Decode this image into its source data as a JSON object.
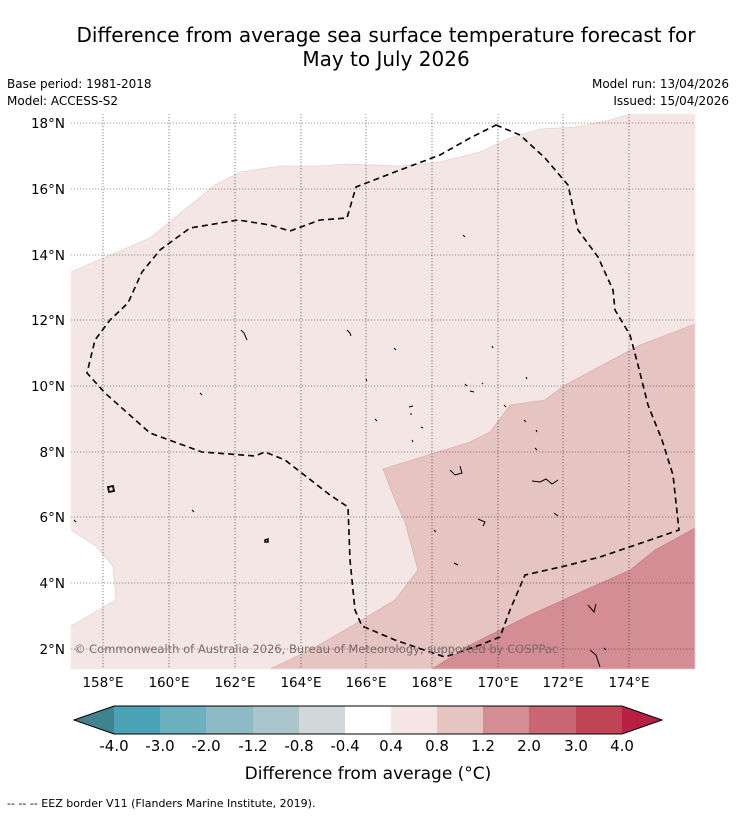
{
  "header": {
    "title_line1": "Difference from average sea surface temperature forecast for",
    "title_line2": "May to July 2026",
    "base_period": "Base period: 1981-2018",
    "model": "Model: ACCESS-S2",
    "model_run": "Model run: 13/04/2026",
    "issued": "Issued: 15/04/2026"
  },
  "map": {
    "lat_labels": [
      "18°N",
      "16°N",
      "14°N",
      "12°N",
      "10°N",
      "8°N",
      "6°N",
      "4°N",
      "2°N"
    ],
    "lon_labels": [
      "158°E",
      "160°E",
      "162°E",
      "164°E",
      "166°E",
      "168°E",
      "170°E",
      "172°E",
      "174°E"
    ],
    "copyright": "© Commonwealth of Australia 2026, Bureau of Meteorology, supported by COSPPac"
  },
  "colorbar": {
    "labels": [
      "-4.0",
      "-3.0",
      "-2.0",
      "-1.2",
      "-0.8",
      "-0.4",
      "0.4",
      "0.8",
      "1.2",
      "2.0",
      "3.0",
      "4.0"
    ],
    "colors": [
      "#3e838f",
      "#4aa3b4",
      "#6db0be",
      "#8eb9c4",
      "#a9c6cb",
      "#d0d8db",
      "#ffffff",
      "#f4e6e5",
      "#e6c4c1",
      "#d48d95",
      "#c86674",
      "#bf4454",
      "#b72042"
    ],
    "title": "Difference from average (°C)"
  },
  "footer": {
    "legend": "-- -- -- EEZ border V11 (Flanders Marine Institute, 2019)."
  }
}
